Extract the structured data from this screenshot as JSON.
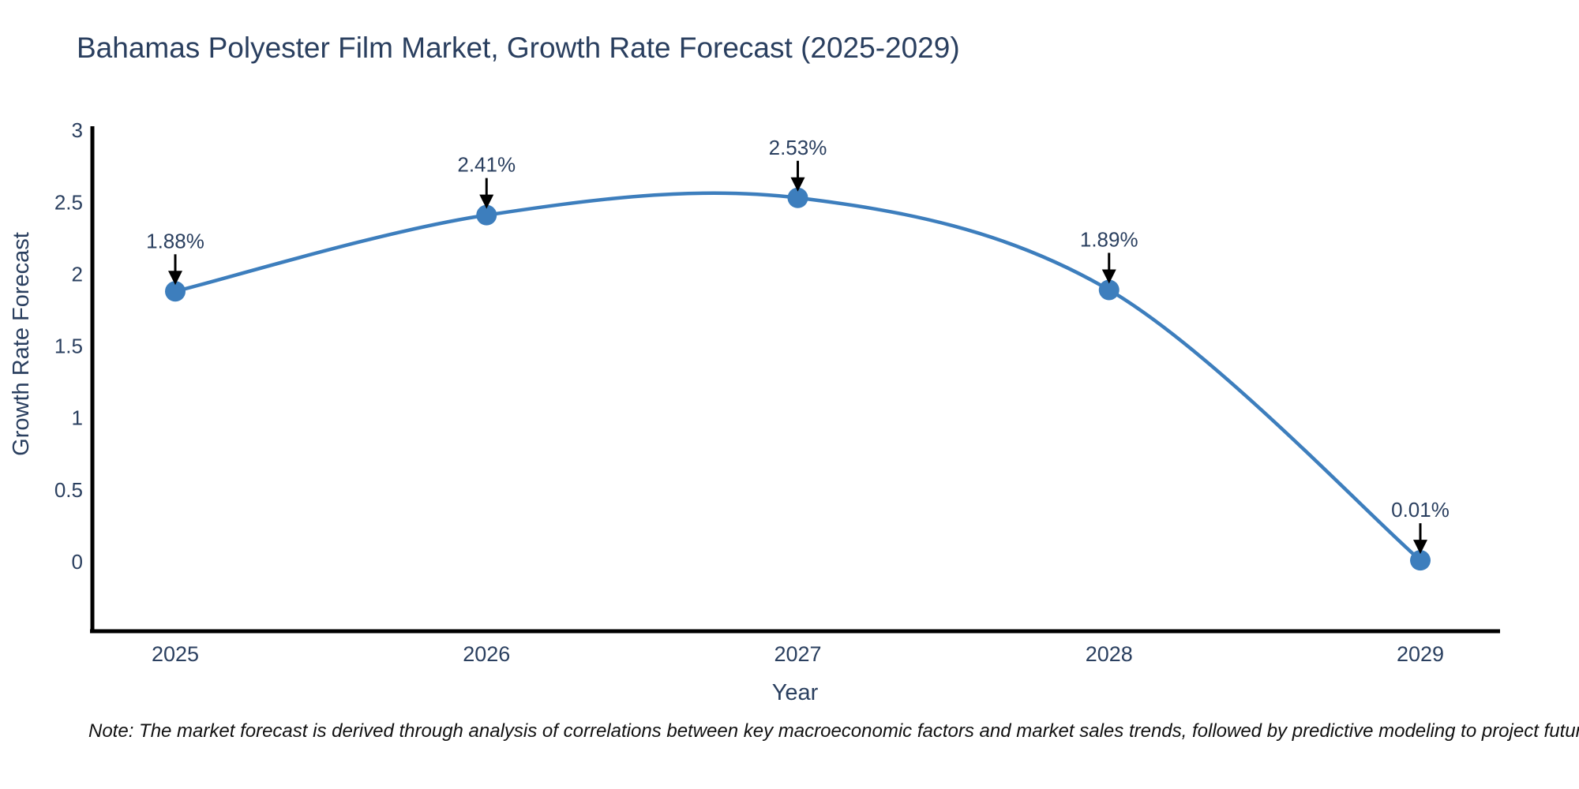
{
  "title": "Bahamas Polyester Film Market, Growth Rate Forecast (2025-2029)",
  "note": "Note: The market forecast is derived through analysis of correlations between key macroeconomic factors and market sales trends, followed by predictive modeling to project future sales",
  "colors": {
    "text": "#2a3f5f",
    "line": "#3d7ebd",
    "marker": "#3d7ebd",
    "axis": "#000000",
    "arrow": "#000000",
    "background": "#ffffff",
    "note_text": "#111111"
  },
  "chart_data": {
    "type": "line",
    "title": "Bahamas Polyester Film Market, Growth Rate Forecast (2025-2029)",
    "xlabel": "Year",
    "ylabel": "Growth Rate Forecast",
    "x": [
      2025,
      2026,
      2027,
      2028,
      2029
    ],
    "values": [
      1.88,
      2.41,
      2.53,
      1.89,
      0.01
    ],
    "point_labels": [
      "1.88%",
      "2.41%",
      "2.53%",
      "1.89%",
      "0.01%"
    ],
    "yticks": [
      0,
      0.5,
      1,
      1.5,
      2,
      2.5,
      3
    ],
    "ylim": [
      -0.5,
      3.05
    ],
    "line_shape": "spline",
    "grid": false,
    "legend": "none",
    "annotations": "value labels with black arrows pointing down at each data point"
  }
}
